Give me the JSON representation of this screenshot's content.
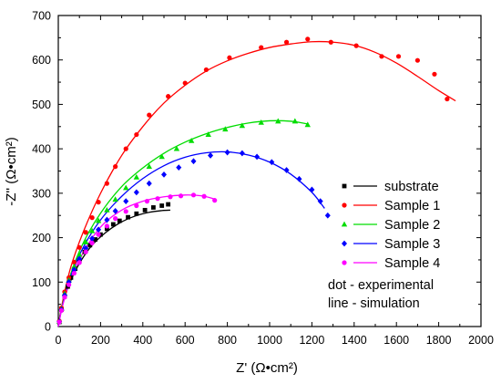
{
  "chart_data": {
    "type": "scatter",
    "title": "",
    "xlabel": "Z' (Ω•cm²)",
    "ylabel": "-Z'' (Ω•cm²)",
    "xlim": [
      0,
      2000
    ],
    "ylim": [
      0,
      700
    ],
    "xticks": [
      0,
      200,
      400,
      600,
      800,
      1000,
      1200,
      1400,
      1600,
      1800,
      2000
    ],
    "yticks": [
      0,
      100,
      200,
      300,
      400,
      500,
      600,
      700
    ],
    "grid": false,
    "legend_position": "right",
    "series": [
      {
        "name": "substrate",
        "color": "#000000",
        "marker": "square",
        "points": [
          [
            5,
            10
          ],
          [
            15,
            38
          ],
          [
            30,
            68
          ],
          [
            45,
            90
          ],
          [
            60,
            110
          ],
          [
            80,
            130
          ],
          [
            100,
            150
          ],
          [
            125,
            168
          ],
          [
            150,
            183
          ],
          [
            175,
            196
          ],
          [
            200,
            207
          ],
          [
            230,
            220
          ],
          [
            260,
            230
          ],
          [
            290,
            238
          ],
          [
            330,
            246
          ],
          [
            370,
            254
          ],
          [
            410,
            262
          ],
          [
            450,
            268
          ],
          [
            490,
            272
          ],
          [
            520,
            275
          ]
        ],
        "fit": [
          [
            0,
            0
          ],
          [
            8,
            25
          ],
          [
            20,
            50
          ],
          [
            40,
            80
          ],
          [
            70,
            115
          ],
          [
            110,
            150
          ],
          [
            160,
            183
          ],
          [
            220,
            210
          ],
          [
            290,
            233
          ],
          [
            360,
            248
          ],
          [
            430,
            257
          ],
          [
            490,
            261
          ],
          [
            530,
            262
          ]
        ]
      },
      {
        "name": "Sample 1",
        "color": "#ff0000",
        "marker": "circle",
        "points": [
          [
            5,
            12
          ],
          [
            15,
            42
          ],
          [
            30,
            78
          ],
          [
            50,
            110
          ],
          [
            75,
            145
          ],
          [
            100,
            178
          ],
          [
            130,
            212
          ],
          [
            160,
            245
          ],
          [
            190,
            280
          ],
          [
            230,
            322
          ],
          [
            270,
            360
          ],
          [
            320,
            400
          ],
          [
            370,
            432
          ],
          [
            430,
            476
          ],
          [
            520,
            518
          ],
          [
            600,
            548
          ],
          [
            700,
            578
          ],
          [
            810,
            605
          ],
          [
            960,
            628
          ],
          [
            1080,
            640
          ],
          [
            1180,
            647
          ],
          [
            1290,
            640
          ],
          [
            1410,
            632
          ],
          [
            1530,
            608
          ],
          [
            1610,
            608
          ],
          [
            1700,
            599
          ],
          [
            1780,
            568
          ],
          [
            1840,
            512
          ]
        ],
        "fit": [
          [
            0,
            0
          ],
          [
            20,
            55
          ],
          [
            60,
            135
          ],
          [
            120,
            215
          ],
          [
            200,
            300
          ],
          [
            300,
            385
          ],
          [
            400,
            450
          ],
          [
            500,
            503
          ],
          [
            600,
            543
          ],
          [
            700,
            575
          ],
          [
            800,
            598
          ],
          [
            900,
            615
          ],
          [
            1000,
            628
          ],
          [
            1100,
            636
          ],
          [
            1200,
            641
          ],
          [
            1300,
            640
          ],
          [
            1400,
            633
          ],
          [
            1500,
            617
          ],
          [
            1600,
            593
          ],
          [
            1700,
            563
          ],
          [
            1800,
            531
          ],
          [
            1880,
            508
          ]
        ]
      },
      {
        "name": "Sample 2",
        "color": "#00dd00",
        "marker": "triangle",
        "points": [
          [
            5,
            11
          ],
          [
            15,
            40
          ],
          [
            30,
            74
          ],
          [
            50,
            104
          ],
          [
            75,
            135
          ],
          [
            100,
            162
          ],
          [
            130,
            190
          ],
          [
            160,
            215
          ],
          [
            190,
            238
          ],
          [
            230,
            262
          ],
          [
            270,
            286
          ],
          [
            320,
            312
          ],
          [
            370,
            336
          ],
          [
            430,
            360
          ],
          [
            490,
            382
          ],
          [
            560,
            400
          ],
          [
            630,
            418
          ],
          [
            710,
            432
          ],
          [
            790,
            444
          ],
          [
            870,
            452
          ],
          [
            960,
            459
          ],
          [
            1040,
            462
          ],
          [
            1120,
            462
          ],
          [
            1180,
            454
          ]
        ],
        "fit": [
          [
            0,
            0
          ],
          [
            20,
            50
          ],
          [
            60,
            120
          ],
          [
            120,
            190
          ],
          [
            200,
            255
          ],
          [
            300,
            315
          ],
          [
            400,
            357
          ],
          [
            500,
            390
          ],
          [
            600,
            415
          ],
          [
            700,
            434
          ],
          [
            800,
            448
          ],
          [
            900,
            458
          ],
          [
            1000,
            463
          ],
          [
            1100,
            462
          ],
          [
            1180,
            456
          ]
        ]
      },
      {
        "name": "Sample 3",
        "color": "#0000ff",
        "marker": "diamond",
        "points": [
          [
            5,
            11
          ],
          [
            15,
            38
          ],
          [
            30,
            70
          ],
          [
            50,
            100
          ],
          [
            75,
            128
          ],
          [
            100,
            152
          ],
          [
            130,
            176
          ],
          [
            160,
            198
          ],
          [
            190,
            218
          ],
          [
            230,
            240
          ],
          [
            270,
            260
          ],
          [
            320,
            282
          ],
          [
            370,
            302
          ],
          [
            430,
            322
          ],
          [
            500,
            342
          ],
          [
            570,
            358
          ],
          [
            640,
            372
          ],
          [
            720,
            385
          ],
          [
            800,
            392
          ],
          [
            870,
            390
          ],
          [
            940,
            382
          ],
          [
            1010,
            370
          ],
          [
            1080,
            352
          ],
          [
            1140,
            332
          ],
          [
            1200,
            308
          ],
          [
            1240,
            282
          ],
          [
            1275,
            250
          ]
        ],
        "fit": [
          [
            0,
            0
          ],
          [
            20,
            48
          ],
          [
            60,
            115
          ],
          [
            120,
            180
          ],
          [
            200,
            240
          ],
          [
            300,
            293
          ],
          [
            400,
            333
          ],
          [
            500,
            362
          ],
          [
            600,
            381
          ],
          [
            700,
            391
          ],
          [
            800,
            393
          ],
          [
            900,
            386
          ],
          [
            1000,
            370
          ],
          [
            1100,
            343
          ],
          [
            1200,
            302
          ],
          [
            1260,
            266
          ]
        ]
      },
      {
        "name": "Sample 4",
        "color": "#ff00ff",
        "marker": "circle",
        "points": [
          [
            5,
            10
          ],
          [
            15,
            36
          ],
          [
            30,
            66
          ],
          [
            50,
            94
          ],
          [
            75,
            120
          ],
          [
            100,
            144
          ],
          [
            130,
            168
          ],
          [
            160,
            188
          ],
          [
            190,
            207
          ],
          [
            230,
            226
          ],
          [
            270,
            243
          ],
          [
            320,
            259
          ],
          [
            370,
            272
          ],
          [
            420,
            282
          ],
          [
            470,
            288
          ],
          [
            530,
            292
          ],
          [
            580,
            294
          ],
          [
            640,
            296
          ],
          [
            690,
            293
          ],
          [
            740,
            284
          ]
        ],
        "fit": [
          [
            0,
            0
          ],
          [
            20,
            46
          ],
          [
            60,
            108
          ],
          [
            120,
            168
          ],
          [
            200,
            224
          ],
          [
            300,
            262
          ],
          [
            400,
            282
          ],
          [
            500,
            292
          ],
          [
            600,
            296
          ],
          [
            680,
            294
          ],
          [
            740,
            287
          ]
        ]
      }
    ],
    "annotations": [
      "dot  - experimental",
      "line - simulation"
    ]
  }
}
